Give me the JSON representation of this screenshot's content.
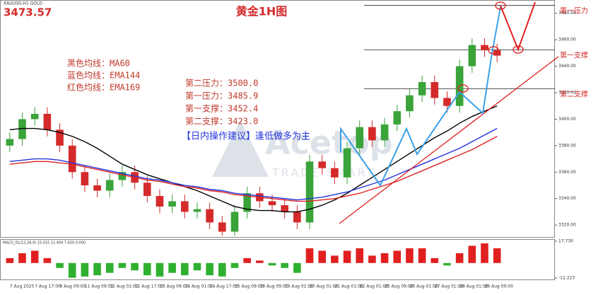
{
  "header": {
    "symbol": "XAUUSD,H1 GOLD",
    "price": "3473.57",
    "title": "黄金1H图"
  },
  "notes": {
    "legend": [
      "黑色均线：MA60",
      "蓝色均线：EMA144",
      "红色均线：EMA169"
    ],
    "levels": [
      "第二压力：3500.0",
      "第一压力：3485.9",
      "第一支撑：3452.4",
      "第二支撑：3423.0"
    ],
    "advice": "【日内操作建议】逢低做多为主"
  },
  "watermark": [
    "Acetop",
    "TRADE SMART"
  ],
  "chart_data": [
    {
      "type": "candlestick",
      "categories": [
        "7 Aug 2025",
        null,
        "7 Aug 17:00",
        null,
        "8 Aug 09:00",
        null,
        "11 Aug 09:00",
        null,
        "12 Aug 01:00",
        null,
        "12 Aug 17:00",
        null,
        "13 Aug 09:00",
        null,
        "14 Aug 01:00",
        null,
        "14 Aug 17:00",
        null,
        "15 Aug 09:00",
        null,
        "18 Aug 09:00",
        null,
        "19 Aug 01:00",
        null,
        "20 Aug 01:00",
        null,
        "21 Aug 01:00",
        null,
        "22 Aug 01:00",
        null,
        "25 Aug 09:00",
        null,
        "26 Aug 01:00",
        null,
        "27 Aug 01:00",
        null,
        "28 Aug 01:00",
        null,
        "29 Aug 09:00",
        null
      ],
      "open": [
        3380,
        3385,
        3400,
        3404,
        3392,
        3380,
        3360,
        3350,
        3346,
        3354,
        3360,
        3352,
        3342,
        3334,
        3338,
        3330,
        3332,
        3322,
        3315,
        3330,
        3344,
        3338,
        3335,
        3330,
        3322,
        3368,
        3363,
        3356,
        3378,
        3394,
        3384,
        3396,
        3406,
        3418,
        3428,
        3416,
        3410,
        3440,
        3456,
        3452
      ],
      "high": [
        3390,
        3405,
        3409,
        3409,
        3397,
        3385,
        3365,
        3355,
        3359,
        3365,
        3365,
        3357,
        3347,
        3343,
        3343,
        3337,
        3337,
        3327,
        3335,
        3349,
        3349,
        3343,
        3340,
        3335,
        3373,
        3373,
        3368,
        3383,
        3399,
        3399,
        3401,
        3411,
        3423,
        3433,
        3433,
        3421,
        3445,
        3461,
        3461,
        3457
      ],
      "low": [
        3375,
        3380,
        3395,
        3387,
        3375,
        3355,
        3345,
        3341,
        3341,
        3349,
        3347,
        3337,
        3329,
        3329,
        3325,
        3325,
        3317,
        3312,
        3312,
        3325,
        3333,
        3330,
        3325,
        3317,
        3317,
        3358,
        3351,
        3351,
        3373,
        3379,
        3379,
        3391,
        3401,
        3413,
        3411,
        3405,
        3405,
        3435,
        3447,
        3443
      ],
      "close": [
        3385,
        3400,
        3404,
        3392,
        3380,
        3360,
        3350,
        3346,
        3354,
        3360,
        3352,
        3342,
        3334,
        3338,
        3330,
        3332,
        3322,
        3315,
        3330,
        3344,
        3338,
        3335,
        3330,
        3322,
        3368,
        3363,
        3356,
        3378,
        3394,
        3384,
        3396,
        3406,
        3418,
        3428,
        3416,
        3410,
        3440,
        3456,
        3452,
        3448
      ],
      "up_color": "#3aa33a",
      "down_color": "#d42a2a",
      "series": [
        {
          "color": "#000000",
          "values": [
            3392,
            3393,
            3393,
            3392,
            3390,
            3387,
            3383,
            3378,
            3372,
            3366,
            3362,
            3358,
            3355,
            3352,
            3349,
            3346,
            3342,
            3338,
            3334,
            3332,
            3331,
            3331,
            3330,
            3330,
            3332,
            3335,
            3339,
            3344,
            3350,
            3356,
            3362,
            3368,
            3374,
            3380,
            3386,
            3391,
            3397,
            3402,
            3406,
            3410
          ]
        },
        {
          "color": "#2233dd",
          "values": [
            3368,
            3369,
            3370,
            3370,
            3369,
            3367,
            3365,
            3363,
            3361,
            3359,
            3357,
            3355,
            3354,
            3352,
            3350,
            3349,
            3347,
            3346,
            3344,
            3343,
            3342,
            3341,
            3340,
            3339,
            3340,
            3341,
            3343,
            3345,
            3348,
            3351,
            3354,
            3358,
            3362,
            3366,
            3370,
            3374,
            3378,
            3383,
            3388,
            3393
          ]
        },
        {
          "color": "#dd2222",
          "values": [
            3366,
            3367,
            3368,
            3368,
            3367,
            3366,
            3364,
            3362,
            3360,
            3358,
            3356,
            3354,
            3353,
            3351,
            3349,
            3348,
            3346,
            3345,
            3343,
            3342,
            3341,
            3340,
            3339,
            3338,
            3338,
            3339,
            3340,
            3342,
            3344,
            3347,
            3350,
            3353,
            3357,
            3361,
            3365,
            3369,
            3373,
            3377,
            3382,
            3387
          ]
        }
      ],
      "levels": [
        {
          "value": 3485.9,
          "label": "第一压力"
        },
        {
          "value": 3452.4,
          "label": "第一支撑"
        },
        {
          "value": 3423.0,
          "label": "第二支撑"
        }
      ],
      "ylim": [
        3311,
        3490
      ],
      "yticks": [
        {
          "value": 3320,
          "label": "3320.00"
        },
        {
          "value": 3340,
          "label": "3340.00"
        },
        {
          "value": 3360,
          "label": "3360.00"
        },
        {
          "value": 3380,
          "label": "3380.00"
        },
        {
          "value": 3400,
          "label": "3400.00"
        },
        {
          "value": 3420,
          "label": "3420.00"
        },
        {
          "value": 3440,
          "label": "3440.00"
        },
        {
          "value": 3460,
          "label": "3460.00"
        },
        {
          "value": 3480,
          "label": "3480.00"
        }
      ]
    },
    {
      "type": "bar",
      "title": "MACD_DL(12,26,9) 15.015 11.494 7.650 0.000",
      "values": [
        4,
        8,
        10,
        4,
        -4,
        -12,
        -11,
        -10,
        -8,
        -4,
        -6,
        -10,
        -11,
        -8,
        -10,
        -6,
        -10,
        -11,
        -4,
        4,
        2,
        -2,
        -4,
        -8,
        12,
        10,
        6,
        10,
        12,
        6,
        8,
        10,
        12,
        12,
        4,
        -2,
        8,
        14,
        16,
        12
      ],
      "pos_color": "#e02020",
      "neg_color": "#30b030",
      "ylim": [
        -12.223,
        17.73
      ],
      "yticks": [
        {
          "value": 17.73,
          "label": "17.730"
        },
        {
          "value": -12.223,
          "label": "-12.223"
        }
      ]
    }
  ]
}
